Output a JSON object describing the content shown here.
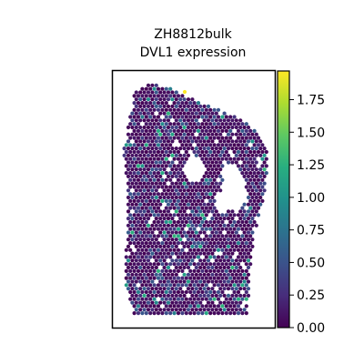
{
  "chart_data": {
    "type": "heatmap",
    "subtype": "spatial-transcriptomics-spots",
    "title": "ZH8812bulk",
    "subtitle": "DVL1 expression",
    "xlabel": "",
    "ylabel": "",
    "colormap": "viridis",
    "colorbar": {
      "vmin": 0.0,
      "vmax": 1.97,
      "tick_values": [
        0.0,
        0.25,
        0.5,
        0.75,
        1.0,
        1.25,
        1.5,
        1.75
      ],
      "tick_labels": [
        "0.00",
        "0.25",
        "0.50",
        "0.75",
        "1.00",
        "1.25",
        "1.50",
        "1.75"
      ]
    },
    "value_distribution": {
      "min": 0.0,
      "max": 1.97,
      "dominant_range": [
        0.0,
        0.6
      ],
      "sparse_high_range": [
        0.8,
        1.3
      ]
    },
    "spot_seed": 8812,
    "axis_ticks_visible": false,
    "grid": false,
    "legend": "colorbar-right"
  }
}
